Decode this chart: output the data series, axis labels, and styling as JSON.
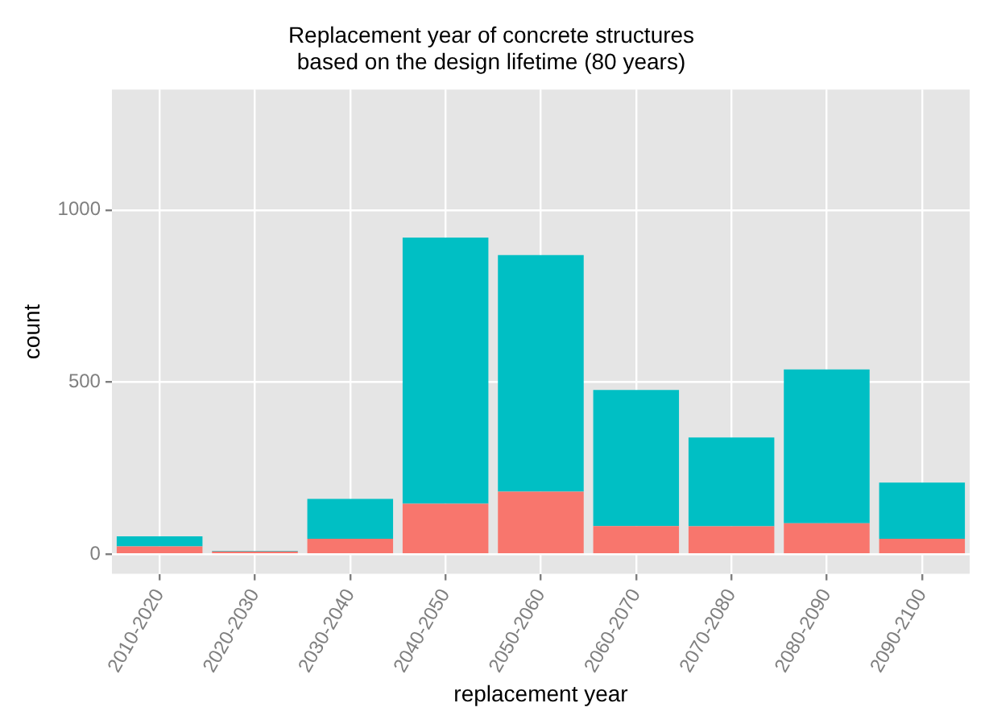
{
  "chart_data": {
    "type": "bar",
    "title": "Replacement year of concrete structures\nbased on the design lifetime (80 years)",
    "xlabel": "replacement year",
    "ylabel": "count",
    "categories": [
      "2010-2020",
      "2020-2030",
      "2030-2040",
      "2040-2050",
      "2050-2060",
      "2060-2070",
      "2070-2080",
      "2080-2090",
      "2090-2100"
    ],
    "stacked": true,
    "series": [
      {
        "color": "#f8766d",
        "values": [
          23,
          8,
          45,
          147,
          182,
          82,
          81,
          90,
          45
        ]
      },
      {
        "color": "#00bfc4",
        "values": [
          29,
          2,
          116,
          773,
          687,
          395,
          258,
          447,
          163
        ]
      }
    ],
    "ylim": [
      -57,
      1350
    ],
    "yticks": [
      0,
      500,
      1000
    ],
    "grid": true,
    "legend": false
  }
}
